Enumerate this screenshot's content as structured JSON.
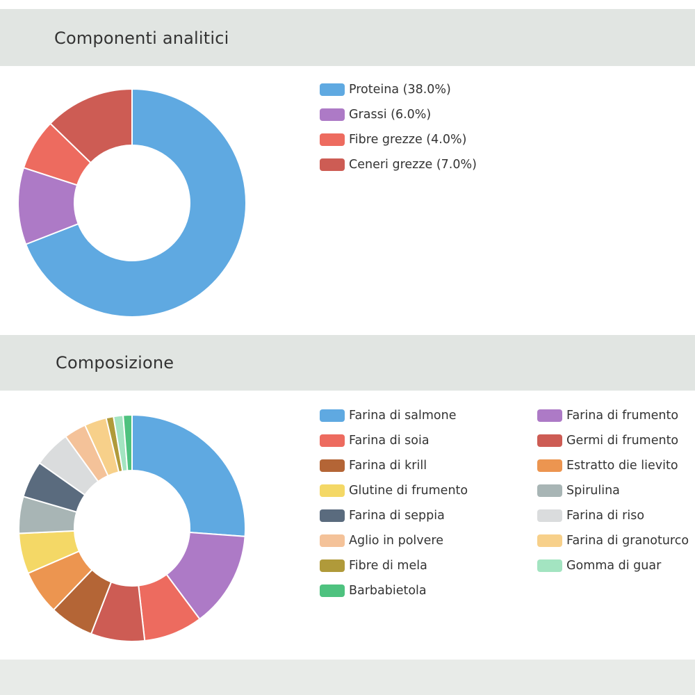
{
  "sections": {
    "analytic": {
      "title": "Componenti analitici"
    },
    "composition": {
      "title": "Composizione"
    }
  },
  "chart_data": [
    {
      "type": "pie",
      "variant": "donut",
      "title": "Componenti analitici",
      "legend_position": "right",
      "slices": [
        {
          "label": "Proteina",
          "legend": "Proteina (38.0%)",
          "value": 38.0,
          "color": "#5fa9e1"
        },
        {
          "label": "Grassi",
          "legend": "Grassi (6.0%)",
          "value": 6.0,
          "color": "#ad7ac6"
        },
        {
          "label": "Fibre grezze",
          "legend": "Fibre grezze (4.0%)",
          "value": 4.0,
          "color": "#ed6b5f"
        },
        {
          "label": "Ceneri grezze",
          "legend": "Ceneri grezze (7.0%)",
          "value": 7.0,
          "color": "#cd5c54"
        }
      ]
    },
    {
      "type": "pie",
      "variant": "donut",
      "title": "Composizione",
      "legend_position": "right",
      "slices": [
        {
          "label": "Farina di salmone",
          "value": 24.9,
          "color": "#5fa9e1"
        },
        {
          "label": "Farina di frumento",
          "value": 13.0,
          "color": "#ad7ac6"
        },
        {
          "label": "Farina di soia",
          "value": 8.0,
          "color": "#ed6b5f"
        },
        {
          "label": "Germi di frumento",
          "value": 7.3,
          "color": "#cd5c54"
        },
        {
          "label": "Farina di krill",
          "value": 6.0,
          "color": "#b46536"
        },
        {
          "label": "Estratto die lievito",
          "value": 6.0,
          "color": "#ec9550"
        },
        {
          "label": "Glutine di frumento",
          "value": 5.5,
          "color": "#f4d866"
        },
        {
          "label": "Spirulina",
          "value": 5.0,
          "color": "#a8b5b5"
        },
        {
          "label": "Farina di seppia",
          "value": 5.0,
          "color": "#5a6b7e"
        },
        {
          "label": "Farina di riso",
          "value": 5.0,
          "color": "#dadcdd"
        },
        {
          "label": "Aglio in polvere",
          "value": 3.0,
          "color": "#f4c299"
        },
        {
          "label": "Farina di granoturco",
          "value": 3.0,
          "color": "#f7d08a"
        },
        {
          "label": "Fibre di mela",
          "value": 1.0,
          "color": "#b09a3a"
        },
        {
          "label": "Gomma di guar",
          "value": 1.3,
          "color": "#a3e4c1"
        },
        {
          "label": "Barbabietola",
          "value": 1.2,
          "color": "#4ec27f"
        }
      ]
    }
  ]
}
